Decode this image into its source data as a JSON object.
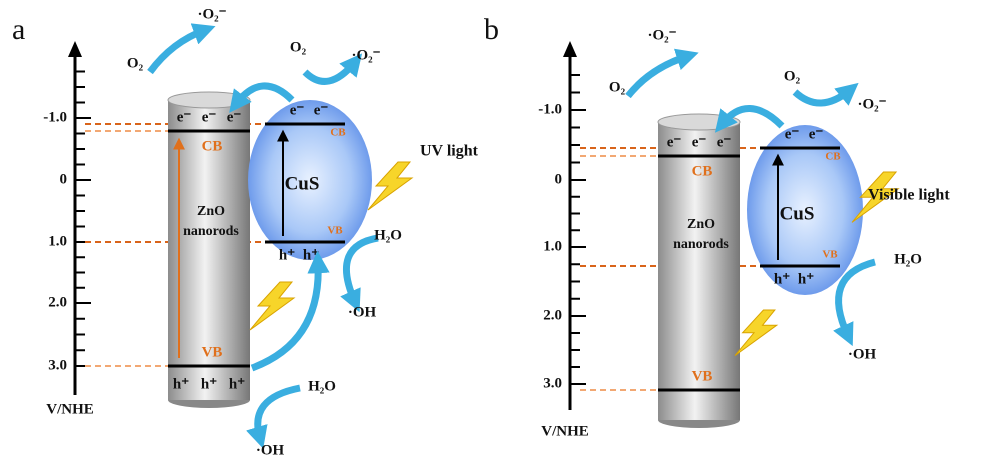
{
  "panels": [
    {
      "label": "a",
      "axis_ticks": [
        "-1.0",
        "0",
        "1.0",
        "2.0",
        "3.0"
      ],
      "axis_label": "V/NHE",
      "zno_label": [
        "ZnO",
        "nanorods"
      ],
      "zno_cb": "CB",
      "zno_vb": "VB",
      "zno_electrons": [
        "e⁻",
        "e⁻",
        "e⁻"
      ],
      "zno_holes": [
        "h⁺",
        "h⁺",
        "h⁺"
      ],
      "cus_label": "CuS",
      "cus_cb": "CB",
      "cus_vb": "VB",
      "cus_electrons": [
        "e⁻",
        "e⁻"
      ],
      "cus_holes": [
        "h⁺",
        "h⁺"
      ],
      "light": "UV light",
      "o2_left": "O₂",
      "o2_radical_left": "·O₂⁻",
      "o2_right": "O₂",
      "o2_radical_right": "·O₂⁻",
      "h2o": "H₂O",
      "oh": "·OH",
      "h2o_bottom": "H₂O",
      "oh_bottom": "·OH"
    },
    {
      "label": "b",
      "axis_ticks": [
        "-1.0",
        "0",
        "1.0",
        "2.0",
        "3.0"
      ],
      "axis_label": "V/NHE",
      "zno_label": [
        "ZnO",
        "nanorods"
      ],
      "zno_cb": "CB",
      "zno_vb": "VB",
      "zno_electrons": [
        "e⁻",
        "e⁻",
        "e⁻"
      ],
      "cus_label": "CuS",
      "cus_cb": "CB",
      "cus_vb": "VB",
      "cus_electrons": [
        "e⁻",
        "e⁻"
      ],
      "cus_holes": [
        "h⁺",
        "h⁺"
      ],
      "light": "Visible light",
      "o2_left": "O₂",
      "o2_radical_left": "·O₂⁻",
      "o2_right": "O₂",
      "o2_radical_right": "·O₂⁻",
      "h2o": "H₂O",
      "oh": "·OH"
    }
  ]
}
